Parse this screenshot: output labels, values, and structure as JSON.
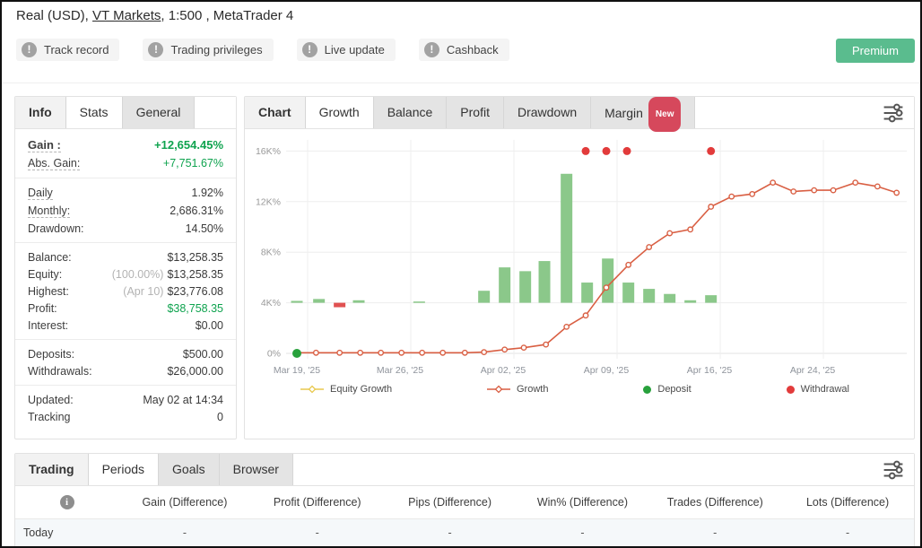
{
  "header": {
    "title_prefix": "Real (USD), ",
    "broker_link": "VT Markets",
    "title_suffix": ", 1:500 , MetaTrader 4",
    "badges": [
      {
        "label": "Track record"
      },
      {
        "label": "Trading privileges"
      },
      {
        "label": "Live update"
      },
      {
        "label": "Cashback"
      }
    ],
    "premium_label": "Premium"
  },
  "info_panel": {
    "tabs": [
      {
        "label": "Info",
        "state": "active"
      },
      {
        "label": "Stats",
        "state": "normal"
      },
      {
        "label": "General",
        "state": "inactive"
      }
    ],
    "rows": [
      {
        "label": "Gain :",
        "value": "+12,654.45%",
        "value_color": "green",
        "label_dashed": true,
        "bold": true
      },
      {
        "label": "Abs. Gain:",
        "value": "+7,751.67%",
        "value_color": "green",
        "label_dashed": true,
        "divider_after": true
      },
      {
        "label": "Daily",
        "value": "1.92%",
        "label_dashed": true
      },
      {
        "label": "Monthly:",
        "value": "2,686.31%",
        "label_dashed": true
      },
      {
        "label": "Drawdown:",
        "value": "14.50%",
        "divider_after": true
      },
      {
        "label": "Balance:",
        "value": "$13,258.35"
      },
      {
        "label": "Equity:",
        "prefix": "(100.00%)",
        "value": "$13,258.35"
      },
      {
        "label": "Highest:",
        "prefix": "(Apr 10)",
        "value": "$23,776.08"
      },
      {
        "label": "Profit:",
        "value": "$38,758.35",
        "value_color": "green"
      },
      {
        "label": "Interest:",
        "value": "$0.00",
        "divider_after": true
      },
      {
        "label": "Deposits:",
        "value": "$500.00"
      },
      {
        "label": "Withdrawals:",
        "value": "$26,000.00",
        "divider_after": true
      },
      {
        "label": "Updated:",
        "value": "May 02 at 14:34"
      },
      {
        "label": "Tracking",
        "value": "0"
      }
    ]
  },
  "chart_panel": {
    "tabs": [
      {
        "label": "Chart",
        "state": "active"
      },
      {
        "label": "Growth",
        "state": "normal"
      },
      {
        "label": "Balance",
        "state": "inactive"
      },
      {
        "label": "Profit",
        "state": "inactive"
      },
      {
        "label": "Drawdown",
        "state": "inactive"
      },
      {
        "label": "Margin",
        "state": "inactive",
        "badge": "New"
      }
    ]
  },
  "chart_data": {
    "type": "mixed",
    "x_axis": {
      "unit": "days since Mar 19 2025",
      "max": 41.4,
      "ticks": [
        {
          "pos": 0,
          "label": "Mar 19, '25"
        },
        {
          "pos": 7,
          "label": "Mar 26, '25"
        },
        {
          "pos": 14,
          "label": "Apr 02, '25"
        },
        {
          "pos": 21,
          "label": "Apr 09, '25"
        },
        {
          "pos": 28,
          "label": "Apr 16, '25"
        },
        {
          "pos": 35,
          "label": "Apr 24, '25"
        }
      ],
      "gridline_offset": 0.73
    },
    "y_axis": {
      "unit": "thousand percent",
      "min": 0,
      "max": 16,
      "ticks": [
        {
          "v": 0,
          "label": "0%"
        },
        {
          "v": 4,
          "label": "4K%"
        },
        {
          "v": 8,
          "label": "8K%"
        },
        {
          "v": 12,
          "label": "12K%"
        },
        {
          "v": 16,
          "label": "16K%"
        }
      ]
    },
    "series": [
      {
        "name": "Equity Growth",
        "type": "bar",
        "baseline": 4,
        "color": "#8bc88a",
        "negative_color": "#e05151",
        "points": [
          [
            0,
            0.15
          ],
          [
            1.5,
            0.3
          ],
          [
            2.9,
            -0.35
          ],
          [
            4.2,
            0.2
          ],
          [
            8.3,
            0.1
          ],
          [
            12.7,
            0.95
          ],
          [
            14.1,
            2.8
          ],
          [
            15.5,
            2.5
          ],
          [
            16.8,
            3.3
          ],
          [
            18.3,
            10.2
          ],
          [
            19.7,
            1.6
          ],
          [
            21.1,
            3.5
          ],
          [
            22.5,
            1.6
          ],
          [
            23.9,
            1.1
          ],
          [
            25.3,
            0.7
          ],
          [
            26.7,
            0.2
          ],
          [
            28.1,
            0.6
          ]
        ]
      },
      {
        "name": "Growth",
        "type": "line",
        "color": "#d95f43",
        "points": [
          [
            0,
            0.05
          ],
          [
            1.3,
            0.05
          ],
          [
            2.9,
            0.05
          ],
          [
            4.3,
            0.05
          ],
          [
            5.7,
            0.05
          ],
          [
            7.1,
            0.05
          ],
          [
            8.5,
            0.05
          ],
          [
            9.9,
            0.05
          ],
          [
            11.4,
            0.05
          ],
          [
            12.7,
            0.1
          ],
          [
            14.1,
            0.3
          ],
          [
            15.4,
            0.45
          ],
          [
            16.9,
            0.7
          ],
          [
            18.3,
            2.1
          ],
          [
            19.6,
            3.0
          ],
          [
            21.0,
            5.2
          ],
          [
            22.5,
            7.0
          ],
          [
            23.9,
            8.4
          ],
          [
            25.3,
            9.5
          ],
          [
            26.7,
            9.8
          ],
          [
            28.1,
            11.6
          ],
          [
            29.5,
            12.4
          ],
          [
            30.9,
            12.6
          ],
          [
            32.3,
            13.5
          ],
          [
            33.7,
            12.8
          ],
          [
            35.1,
            12.9
          ],
          [
            36.4,
            12.9
          ],
          [
            37.9,
            13.5
          ],
          [
            39.4,
            13.2
          ],
          [
            40.7,
            12.7
          ]
        ]
      },
      {
        "name": "Deposit",
        "type": "event-dot",
        "color": "#28a13c",
        "points": [
          [
            0,
            0
          ]
        ]
      },
      {
        "name": "Withdrawal",
        "type": "event-dot",
        "color": "#e23b3b",
        "points": [
          [
            19.6,
            16
          ],
          [
            21.0,
            16
          ],
          [
            22.4,
            16
          ],
          [
            28.1,
            16
          ]
        ]
      }
    ],
    "legend": [
      {
        "label": "Equity Growth",
        "marker": "line-diamond",
        "color": "#e8c94f"
      },
      {
        "label": "Growth",
        "marker": "line-diamond",
        "color": "#d95f43"
      },
      {
        "label": "Deposit",
        "marker": "dot",
        "color": "#28a13c"
      },
      {
        "label": "Withdrawal",
        "marker": "dot",
        "color": "#e23b3b"
      }
    ]
  },
  "bottom_panel": {
    "tabs": [
      {
        "label": "Trading",
        "state": "active"
      },
      {
        "label": "Periods",
        "state": "normal"
      },
      {
        "label": "Goals",
        "state": "inactive"
      },
      {
        "label": "Browser",
        "state": "inactive"
      }
    ],
    "info_icon": "i",
    "columns": [
      "Gain (Difference)",
      "Profit (Difference)",
      "Pips (Difference)",
      "Win% (Difference)",
      "Trades (Difference)",
      "Lots (Difference)"
    ],
    "rows": [
      {
        "label": "Today",
        "values": [
          "-",
          "-",
          "-",
          "-",
          "-",
          "-"
        ]
      }
    ]
  }
}
